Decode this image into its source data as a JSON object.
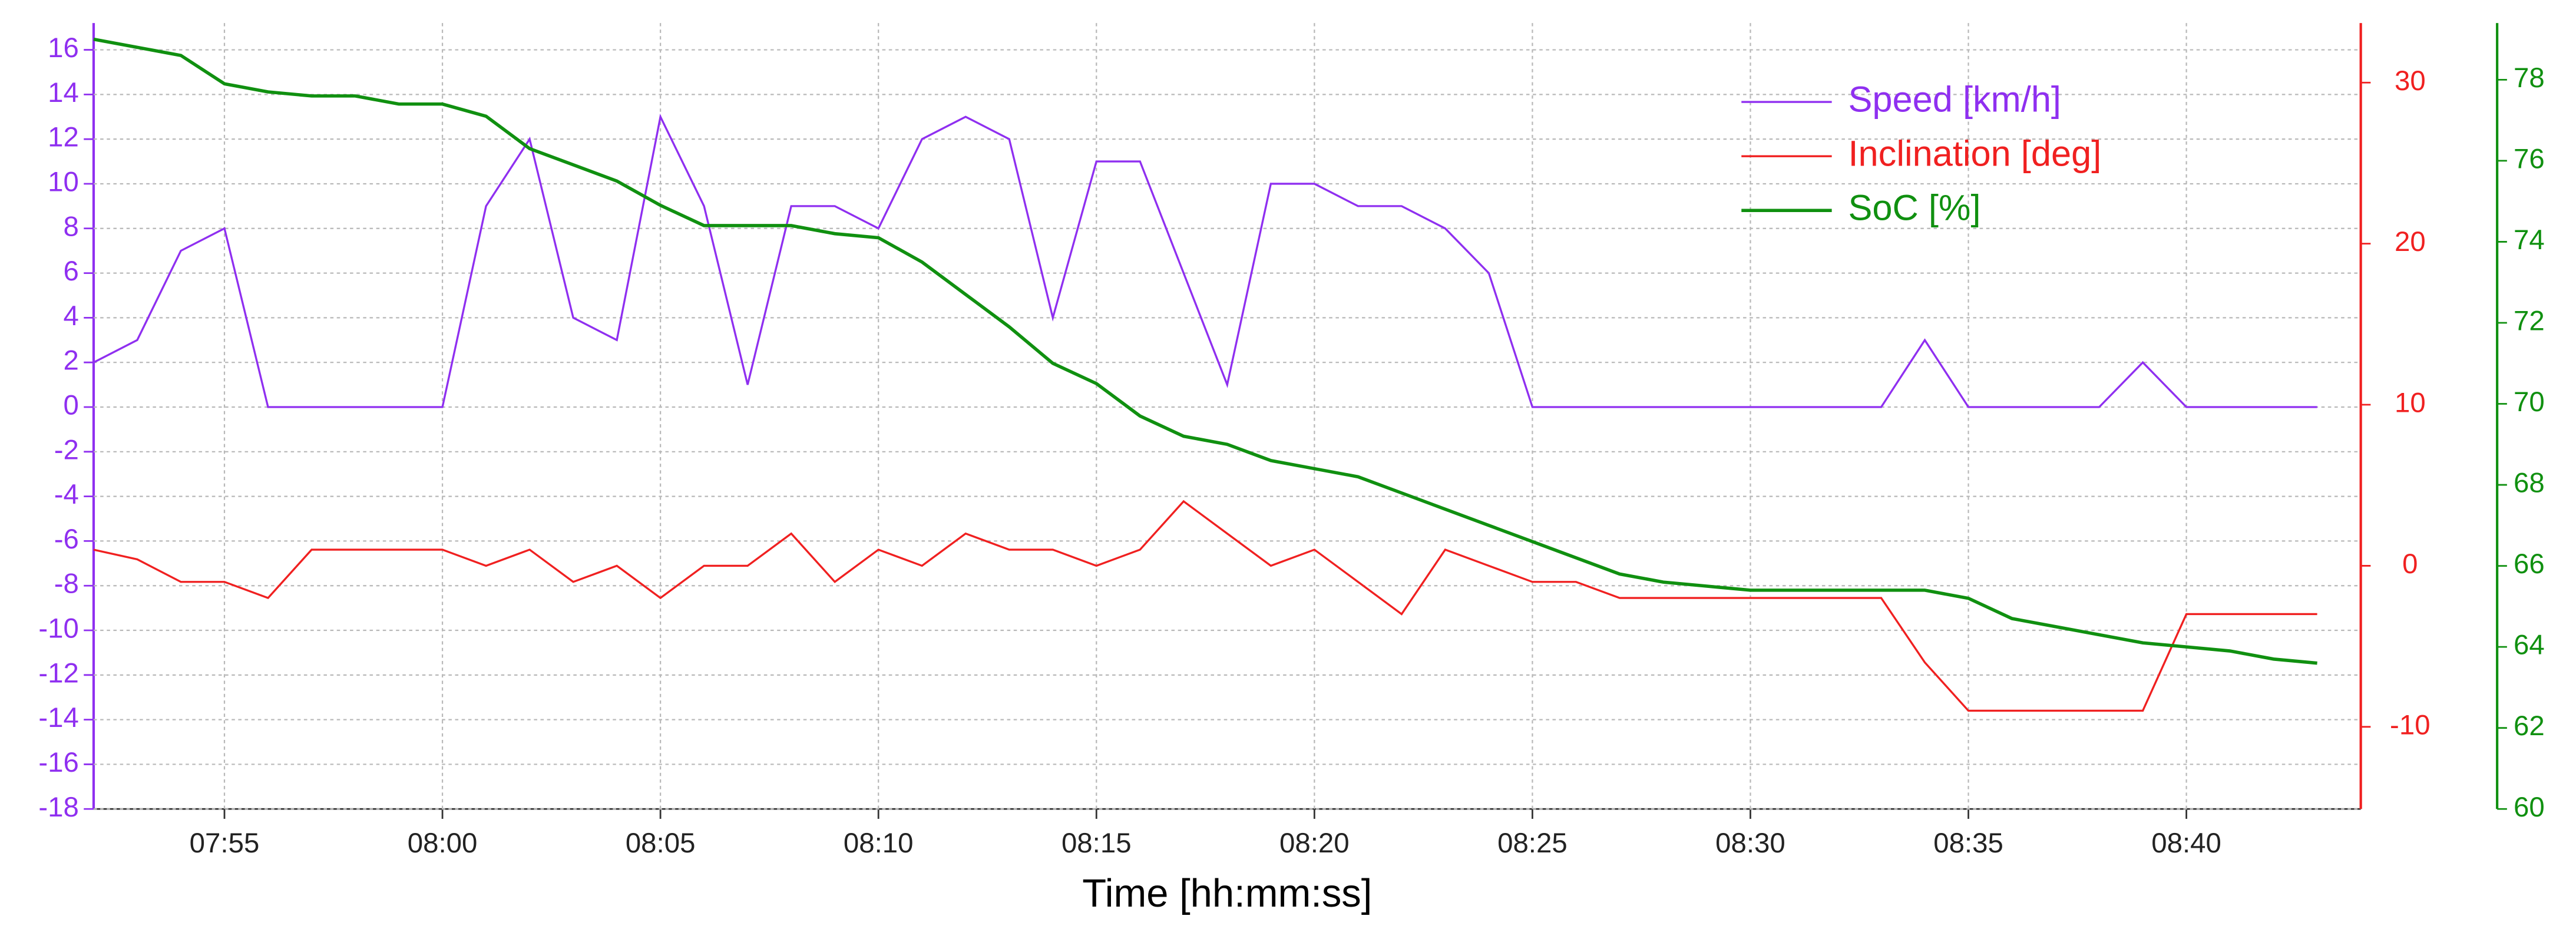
{
  "chart_data": {
    "type": "line",
    "xlabel": "Time [hh:mm:ss]",
    "x": [
      "07:52",
      "07:53",
      "07:54",
      "07:55",
      "07:56",
      "07:57",
      "07:58",
      "07:59",
      "08:00",
      "08:01",
      "08:02",
      "08:03",
      "08:04",
      "08:05",
      "08:06",
      "08:07",
      "08:08",
      "08:09",
      "08:10",
      "08:11",
      "08:12",
      "08:13",
      "08:14",
      "08:15",
      "08:16",
      "08:17",
      "08:18",
      "08:19",
      "08:20",
      "08:21",
      "08:22",
      "08:23",
      "08:24",
      "08:25",
      "08:26",
      "08:27",
      "08:28",
      "08:29",
      "08:30",
      "08:31",
      "08:32",
      "08:33",
      "08:34",
      "08:35",
      "08:36",
      "08:37",
      "08:38",
      "08:39",
      "08:40",
      "08:41",
      "08:42",
      "08:43"
    ],
    "xlim": [
      "07:52",
      "08:44"
    ],
    "xticks": [
      "07:55",
      "08:00",
      "08:05",
      "08:10",
      "08:15",
      "08:20",
      "08:25",
      "08:30",
      "08:35",
      "08:40"
    ],
    "ylim": [
      -18,
      17.2
    ],
    "yticks": [
      -18,
      -16,
      -14,
      -12,
      -10,
      -8,
      -6,
      -4,
      -2,
      0,
      2,
      4,
      6,
      8,
      10,
      12,
      14,
      16
    ],
    "y2lim": [
      -15.1,
      33.7
    ],
    "y2ticks": [
      -10,
      0,
      10,
      20,
      30
    ],
    "y3lim": [
      60,
      79.4
    ],
    "y3ticks": [
      60,
      62,
      64,
      66,
      68,
      70,
      72,
      74,
      76,
      78
    ],
    "grid": true,
    "legend": "upper right",
    "series": [
      {
        "name": "Speed [km/h]",
        "color": "#8f2ff0",
        "axis": "y",
        "values": [
          2,
          3,
          7,
          8,
          0,
          0,
          0,
          0,
          0,
          9,
          12,
          4,
          3,
          13,
          9,
          1,
          9,
          9,
          8,
          12,
          13,
          12,
          4,
          11,
          11,
          6,
          1,
          10,
          10,
          9,
          9,
          8,
          6,
          0,
          0,
          0,
          0,
          0,
          0,
          0,
          0,
          0,
          3,
          0,
          0,
          0,
          0,
          2,
          0,
          0,
          0,
          0
        ]
      },
      {
        "name": "Inclination [deg]",
        "color": "#f02020",
        "axis": "y2",
        "values": [
          1,
          0.4,
          -1,
          -1,
          -2,
          1,
          1,
          1,
          1,
          0,
          1,
          -1,
          0,
          -2,
          0,
          0,
          2,
          -1,
          1,
          0,
          2,
          1,
          1,
          0,
          1,
          4,
          2,
          0,
          1,
          -1,
          -3,
          1,
          0,
          -1,
          -1,
          -2,
          -2,
          -2,
          -2,
          -2,
          -2,
          -2,
          -6,
          -9,
          -9,
          -9,
          -9,
          -9,
          -3,
          -3,
          -3,
          -3
        ]
      },
      {
        "name": "SoC [%]",
        "color": "#109010",
        "axis": "y3",
        "values": [
          79.0,
          78.8,
          78.6,
          77.9,
          77.7,
          77.6,
          77.6,
          77.4,
          77.4,
          77.1,
          76.3,
          75.9,
          75.5,
          74.9,
          74.4,
          74.4,
          74.4,
          74.2,
          74.1,
          73.5,
          72.7,
          71.9,
          71.0,
          70.5,
          69.7,
          69.2,
          69.0,
          68.6,
          68.4,
          68.2,
          67.8,
          67.4,
          67.0,
          66.6,
          66.2,
          65.8,
          65.6,
          65.5,
          65.4,
          65.4,
          65.4,
          65.4,
          65.4,
          65.2,
          64.7,
          64.5,
          64.3,
          64.1,
          64.0,
          63.9,
          63.7,
          63.6
        ]
      }
    ]
  }
}
